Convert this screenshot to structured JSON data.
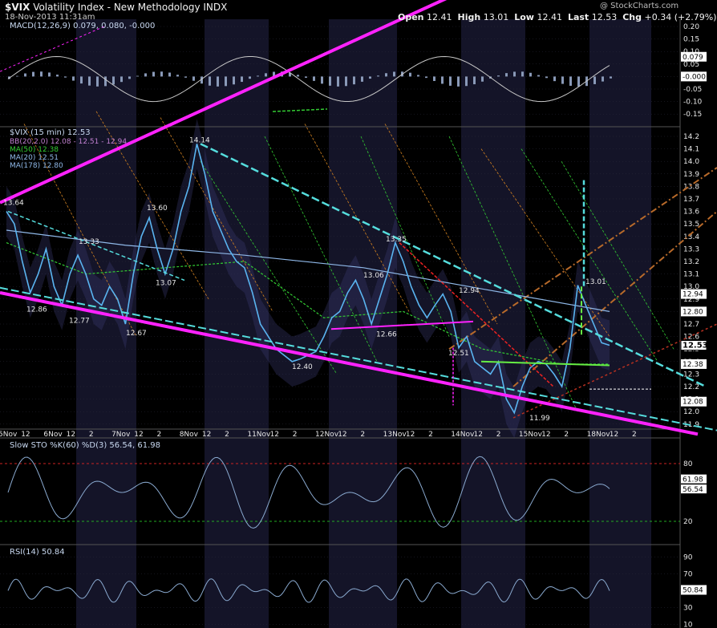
{
  "header": {
    "symbol": "$VIX",
    "name": "Volatility Index - New Methodology",
    "exchange": "INDX",
    "date": "18-Nov-2013 11:31am",
    "brand": "@ StockCharts.com",
    "open_label": "Open",
    "open": "12.41",
    "high_label": "High",
    "high": "13.01",
    "low_label": "Low",
    "low": "12.41",
    "last_label": "Last",
    "last": "12.53",
    "chg_label": "Chg",
    "chg": "+0.34 (+2.79%)"
  },
  "colors": {
    "bg": "#000000",
    "panel_bg": "#000000",
    "band": "#141428",
    "grid": "#2a2a3a",
    "price": "#5ab4f0",
    "magenta": "#ff22ff",
    "cyan": "#55dddd",
    "green_ma": "#33cc33",
    "orange": "#d08020",
    "red": "#ee2222",
    "lightgreen": "#66ee44"
  },
  "macd": {
    "label": "MACD(12,26,9) 0.079, 0.080, -0.000",
    "axis_ticks": [
      "0.20",
      "0.15",
      "0.10",
      "0.05",
      "0.00",
      "-0.05",
      "-0.10",
      "-0.15"
    ],
    "tags": [
      "0.079",
      "-0.000"
    ]
  },
  "chart_data": {
    "type": "line",
    "title": "$VIX (15 min) 12.53",
    "legend": [
      "BB(20,2.0) 12.08 - 12.51 - 12.94",
      "MA(50) 12.38",
      "MA(20) 12.51",
      "MA(178) 12.80"
    ],
    "x_labels": [
      "5Nov",
      "12",
      "6Nov",
      "12",
      "2",
      "7Nov",
      "12",
      "2",
      "8Nov",
      "12",
      "2",
      "11Nov",
      "12",
      "2",
      "12Nov",
      "12",
      "2",
      "13Nov",
      "12",
      "2",
      "14Nov",
      "12",
      "2",
      "15Nov",
      "12",
      "2",
      "18Nov",
      "12",
      "2"
    ],
    "ylim": [
      11.9,
      14.3
    ],
    "y_ticks": [
      "14.2",
      "14.1",
      "14.0",
      "13.9",
      "13.8",
      "13.7",
      "13.6",
      "13.5",
      "13.4",
      "13.3",
      "13.2",
      "13.1",
      "13.0",
      "12.9",
      "12.8",
      "12.7",
      "12.6",
      "12.5",
      "12.4",
      "12.3",
      "12.2",
      "12.1",
      "12.0",
      "11.9"
    ],
    "price_tags": [
      "12.94",
      "12.80",
      "12.53",
      "12.38",
      "12.08"
    ],
    "annotations": [
      "13.64",
      "13.33",
      "12.86",
      "12.77",
      "13.60",
      "13.07",
      "12.67",
      "14.14",
      "12.40",
      "13.35",
      "13.06",
      "12.66",
      "12.94",
      "12.51",
      "11.99",
      "13.01"
    ],
    "series": [
      {
        "name": "$VIX (15 min)",
        "points": [
          [
            0,
            13.6
          ],
          [
            2,
            13.5
          ],
          [
            4,
            13.2
          ],
          [
            6,
            12.95
          ],
          [
            8,
            13.1
          ],
          [
            10,
            13.3
          ],
          [
            12,
            13.0
          ],
          [
            14,
            12.85
          ],
          [
            16,
            13.1
          ],
          [
            18,
            13.25
          ],
          [
            20,
            13.1
          ],
          [
            22,
            12.9
          ],
          [
            24,
            12.85
          ],
          [
            26,
            13.0
          ],
          [
            28,
            12.9
          ],
          [
            30,
            12.7
          ],
          [
            32,
            13.1
          ],
          [
            34,
            13.4
          ],
          [
            36,
            13.55
          ],
          [
            38,
            13.3
          ],
          [
            40,
            13.1
          ],
          [
            42,
            13.3
          ],
          [
            44,
            13.6
          ],
          [
            46,
            13.8
          ],
          [
            48,
            14.14
          ],
          [
            50,
            13.9
          ],
          [
            52,
            13.6
          ],
          [
            54,
            13.45
          ],
          [
            56,
            13.3
          ],
          [
            58,
            13.2
          ],
          [
            60,
            13.15
          ],
          [
            62,
            12.95
          ],
          [
            64,
            12.7
          ],
          [
            66,
            12.6
          ],
          [
            68,
            12.5
          ],
          [
            70,
            12.45
          ],
          [
            72,
            12.4
          ],
          [
            74,
            12.42
          ],
          [
            76,
            12.45
          ],
          [
            78,
            12.48
          ],
          [
            80,
            12.6
          ],
          [
            82,
            12.75
          ],
          [
            84,
            12.8
          ],
          [
            86,
            12.95
          ],
          [
            88,
            13.05
          ],
          [
            90,
            12.9
          ],
          [
            92,
            12.7
          ],
          [
            94,
            12.9
          ],
          [
            96,
            13.1
          ],
          [
            98,
            13.35
          ],
          [
            100,
            13.2
          ],
          [
            102,
            13.0
          ],
          [
            104,
            12.85
          ],
          [
            106,
            12.75
          ],
          [
            108,
            12.85
          ],
          [
            110,
            12.94
          ],
          [
            112,
            12.8
          ],
          [
            114,
            12.51
          ],
          [
            116,
            12.6
          ],
          [
            118,
            12.4
          ],
          [
            120,
            12.35
          ],
          [
            122,
            12.3
          ],
          [
            124,
            12.4
          ],
          [
            126,
            12.1
          ],
          [
            128,
            11.99
          ],
          [
            130,
            12.2
          ],
          [
            132,
            12.35
          ],
          [
            134,
            12.4
          ],
          [
            136,
            12.38
          ],
          [
            138,
            12.3
          ],
          [
            140,
            12.2
          ],
          [
            142,
            12.5
          ],
          [
            144,
            13.01
          ],
          [
            146,
            12.85
          ],
          [
            148,
            12.7
          ],
          [
            150,
            12.55
          ],
          [
            152,
            12.53
          ]
        ]
      },
      {
        "name": "MA(178)",
        "points": [
          [
            0,
            13.45
          ],
          [
            30,
            13.33
          ],
          [
            60,
            13.25
          ],
          [
            90,
            13.15
          ],
          [
            120,
            12.98
          ],
          [
            152,
            12.8
          ]
        ]
      },
      {
        "name": "MA(50)",
        "points": [
          [
            0,
            13.35
          ],
          [
            20,
            13.1
          ],
          [
            40,
            13.15
          ],
          [
            60,
            13.2
          ],
          [
            80,
            12.75
          ],
          [
            100,
            12.8
          ],
          [
            120,
            12.5
          ],
          [
            140,
            12.38
          ],
          [
            152,
            12.38
          ]
        ]
      }
    ]
  },
  "sto": {
    "label": "Slow STO %K(60) %D(3) 56.54, 61.98",
    "axis_ticks": [
      "80",
      "20"
    ],
    "tags": [
      "61.98",
      "56.54"
    ]
  },
  "rsi": {
    "label": "RSI(14) 50.84",
    "axis_ticks": [
      "90",
      "70",
      "30",
      "10"
    ],
    "tags": [
      "50.84"
    ]
  }
}
